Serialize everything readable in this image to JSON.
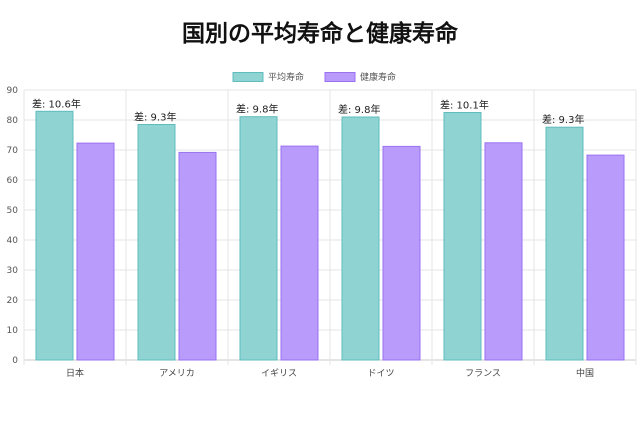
{
  "chart_data": {
    "type": "bar",
    "title": "国別の平均寿命と健康寿命",
    "categories": [
      "日本",
      "アメリカ",
      "イギリス",
      "ドイツ",
      "フランス",
      "中国"
    ],
    "series": [
      {
        "name": "平均寿命",
        "values": [
          82.9,
          78.5,
          81.1,
          81.0,
          82.5,
          77.6
        ],
        "color": "#8fd3d3",
        "border": "#5fbcbc"
      },
      {
        "name": "健康寿命",
        "values": [
          72.3,
          69.2,
          71.3,
          71.2,
          72.4,
          68.3
        ],
        "color": "#b89bfa",
        "border": "#9a72f0"
      }
    ],
    "diff_labels": [
      "差: 10.6年",
      "差: 9.3年",
      "差: 9.8年",
      "差: 9.8年",
      "差: 10.1年",
      "差: 9.3年"
    ],
    "ylim": [
      0,
      90
    ],
    "yticks": [
      "0",
      "10",
      "20",
      "30",
      "40",
      "50",
      "60",
      "70",
      "80",
      "90"
    ],
    "xlabel": "",
    "ylabel": "",
    "grid": true,
    "legend_position": "top-center"
  }
}
